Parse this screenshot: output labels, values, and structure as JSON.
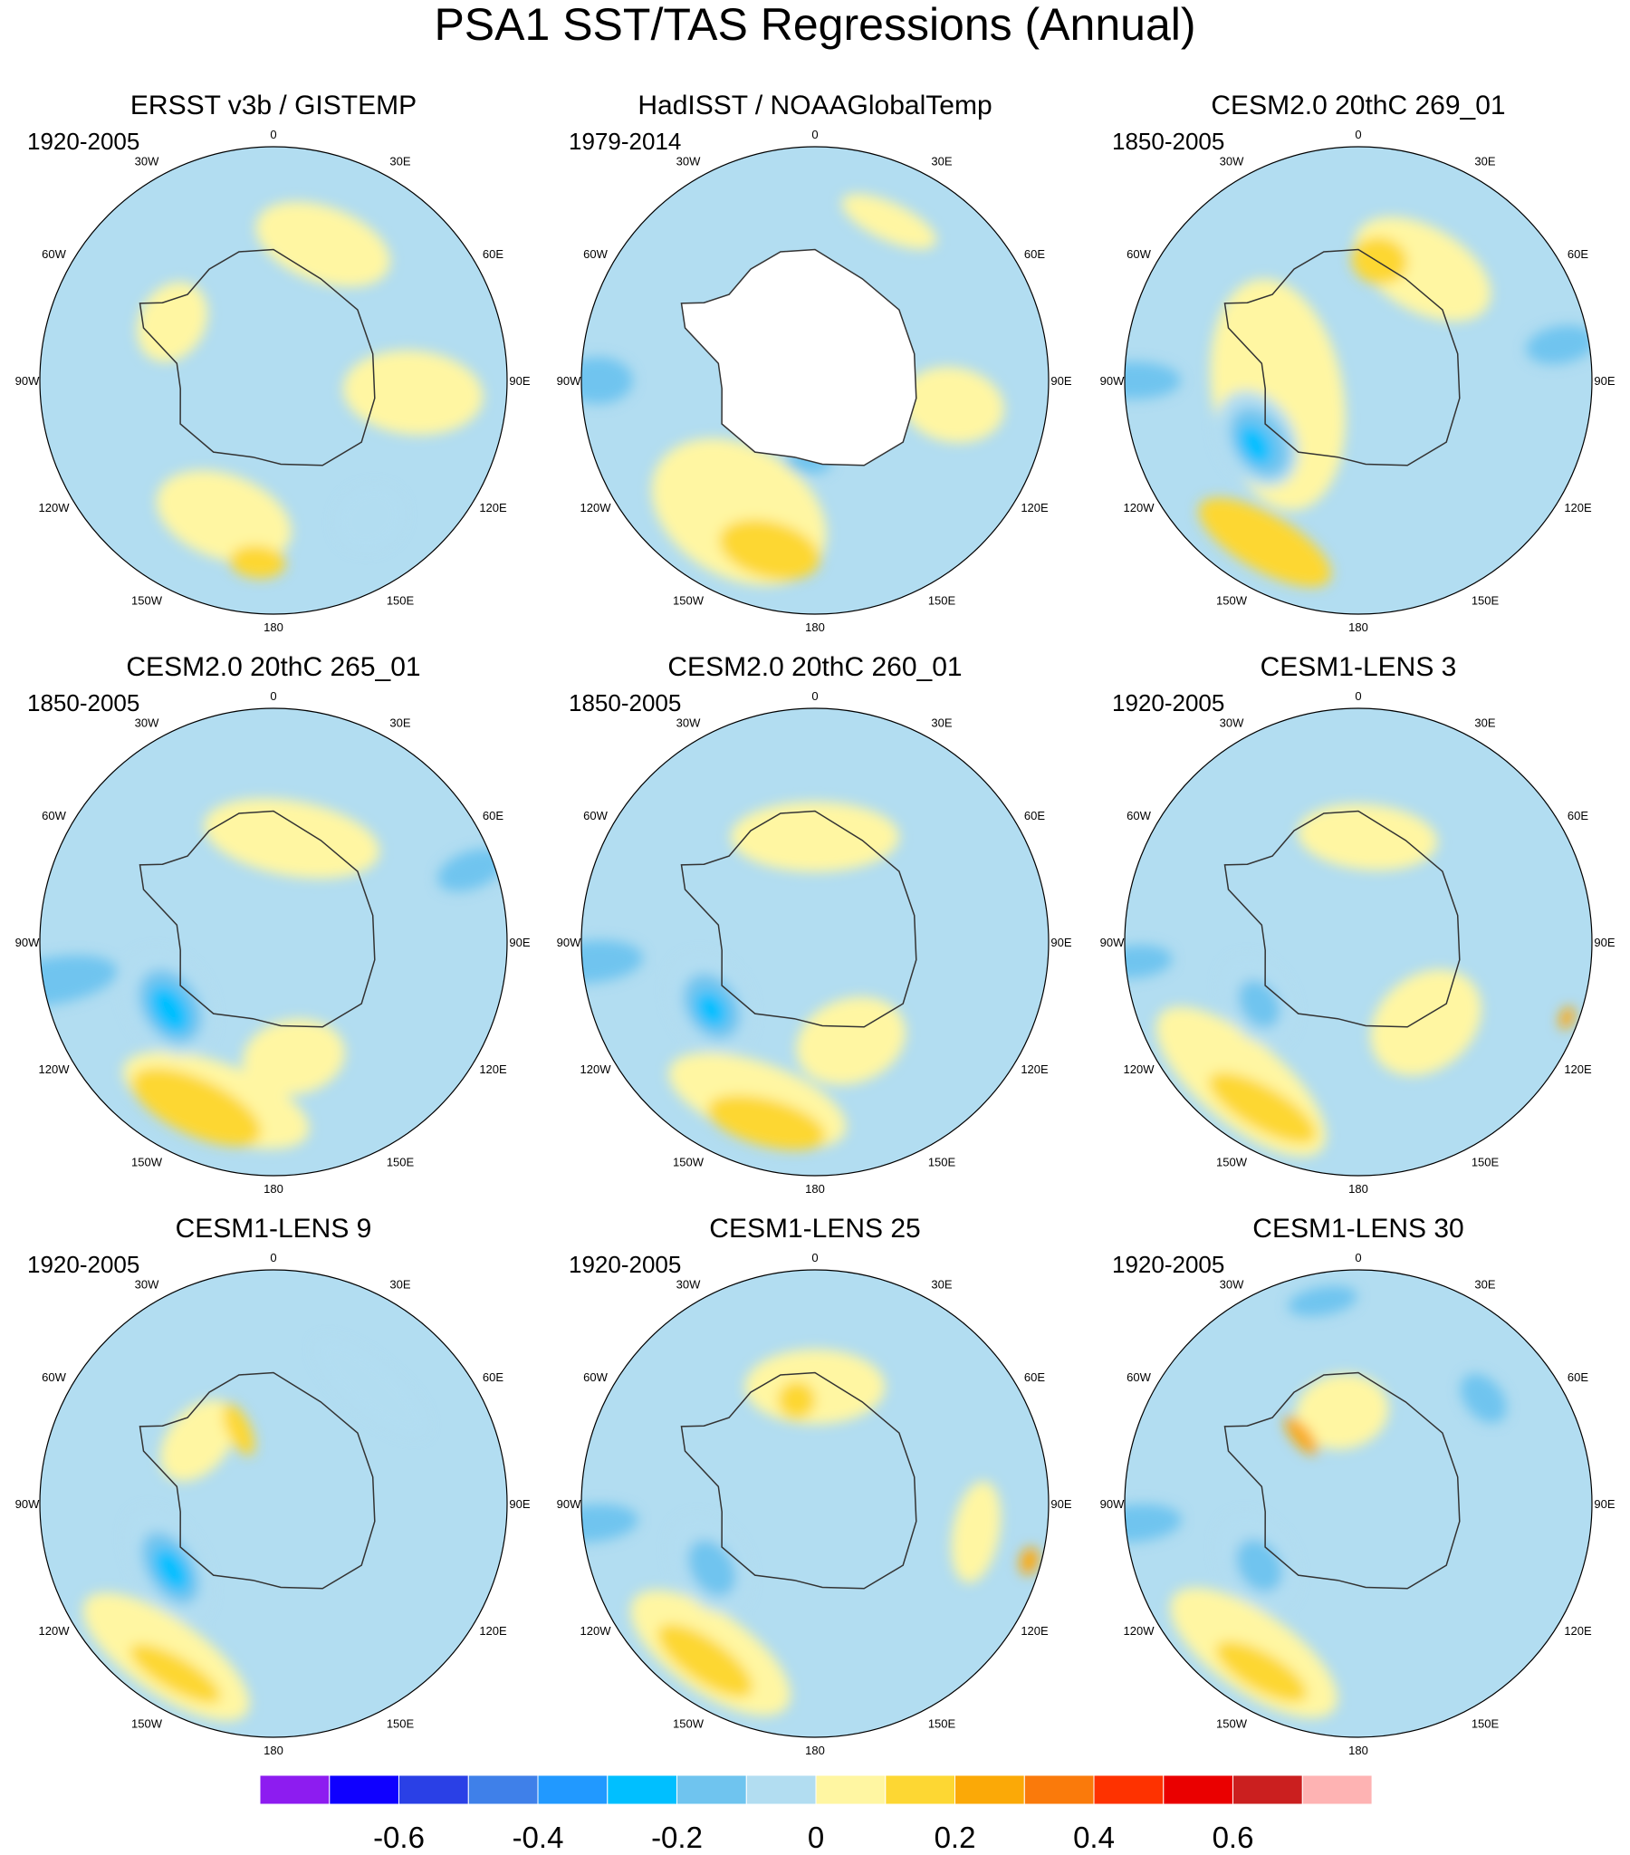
{
  "chart_data": {
    "type": "heatmap",
    "projection": "south-polar-stereographic",
    "title": "PSA1 SST/TAS Regressions (Annual)",
    "longitude_labels": [
      "0",
      "30E",
      "60E",
      "90E",
      "120E",
      "150E",
      "180",
      "150W",
      "120W",
      "90W",
      "60W",
      "30W"
    ],
    "panels": [
      {
        "title": "ERSST v3b / GISTEMP",
        "period": "1920-2005",
        "features": [
          {
            "level": 0.05,
            "lon": 20,
            "r": 0.62,
            "sx": 0.3,
            "sy": 0.16
          },
          {
            "level": 0.05,
            "lon": 95,
            "r": 0.6,
            "sx": 0.18,
            "sy": 0.3
          },
          {
            "level": 0.05,
            "lon": -160,
            "r": 0.62,
            "sx": 0.3,
            "sy": 0.18
          },
          {
            "level": 0.05,
            "lon": -60,
            "r": 0.5,
            "sx": 0.18,
            "sy": 0.14
          },
          {
            "level": 0.15,
            "lon": -175,
            "r": 0.78,
            "sx": 0.12,
            "sy": 0.07
          },
          {
            "level": -0.05,
            "lon": 145,
            "r": 0.72,
            "sx": 0.15,
            "sy": 0.13
          }
        ]
      },
      {
        "title": "HadISST / NOAAGlobalTemp",
        "period": "1979-2014",
        "mask_polar": true,
        "features": [
          {
            "level": 0.05,
            "lon": -150,
            "r": 0.65,
            "sx": 0.4,
            "sy": 0.28
          },
          {
            "level": 0.15,
            "lon": -165,
            "r": 0.75,
            "sx": 0.22,
            "sy": 0.12
          },
          {
            "level": 0.05,
            "lon": 100,
            "r": 0.6,
            "sx": 0.16,
            "sy": 0.22
          },
          {
            "level": 0.05,
            "lon": 25,
            "r": 0.75,
            "sx": 0.22,
            "sy": 0.08
          },
          {
            "level": -0.15,
            "lon": -90,
            "r": 0.93,
            "sx": 0.1,
            "sy": 0.15
          },
          {
            "level": -0.15,
            "lon": -175,
            "r": 0.35,
            "sx": 0.1,
            "sy": 0.05
          }
        ]
      },
      {
        "title": "CESM2.0 20thC 269_01",
        "period": "1850-2005",
        "features": [
          {
            "level": 0.05,
            "lon": -100,
            "r": 0.35,
            "sx": 0.5,
            "sy": 0.28
          },
          {
            "level": 0.05,
            "lon": 30,
            "r": 0.55,
            "sx": 0.32,
            "sy": 0.18
          },
          {
            "level": 0.15,
            "lon": 10,
            "r": 0.52,
            "sx": 0.12,
            "sy": 0.1
          },
          {
            "level": 0.15,
            "lon": -150,
            "r": 0.8,
            "sx": 0.32,
            "sy": 0.12
          },
          {
            "level": -0.05,
            "lon": -120,
            "r": 0.5,
            "sx": 0.22,
            "sy": 0.16
          },
          {
            "level": -0.15,
            "lon": -122,
            "r": 0.5,
            "sx": 0.16,
            "sy": 0.11
          },
          {
            "level": -0.25,
            "lon": -122,
            "r": 0.52,
            "sx": 0.09,
            "sy": 0.06
          },
          {
            "level": -0.15,
            "lon": -90,
            "r": 0.96,
            "sx": 0.08,
            "sy": 0.2
          },
          {
            "level": -0.15,
            "lon": 80,
            "r": 0.88,
            "sx": 0.08,
            "sy": 0.15
          }
        ]
      },
      {
        "title": "CESM2.0 20thC 265_01",
        "period": "1850-2005",
        "features": [
          {
            "level": 0.05,
            "lon": 10,
            "r": 0.45,
            "sx": 0.38,
            "sy": 0.16
          },
          {
            "level": 0.05,
            "lon": -160,
            "r": 0.72,
            "sx": 0.42,
            "sy": 0.16
          },
          {
            "level": 0.05,
            "lon": 170,
            "r": 0.5,
            "sx": 0.22,
            "sy": 0.16
          },
          {
            "level": 0.15,
            "lon": -155,
            "r": 0.78,
            "sx": 0.3,
            "sy": 0.12
          },
          {
            "level": -0.05,
            "lon": -120,
            "r": 0.52,
            "sx": 0.24,
            "sy": 0.17
          },
          {
            "level": -0.15,
            "lon": -122,
            "r": 0.52,
            "sx": 0.17,
            "sy": 0.12
          },
          {
            "level": -0.25,
            "lon": -123,
            "r": 0.53,
            "sx": 0.11,
            "sy": 0.07
          },
          {
            "level": -0.15,
            "lon": -100,
            "r": 0.96,
            "sx": 0.1,
            "sy": 0.28
          },
          {
            "level": -0.15,
            "lon": 70,
            "r": 0.9,
            "sx": 0.08,
            "sy": 0.15
          }
        ]
      },
      {
        "title": "CESM2.0 20thC 260_01",
        "period": "1850-2005",
        "features": [
          {
            "level": 0.05,
            "lon": 0,
            "r": 0.45,
            "sx": 0.36,
            "sy": 0.15
          },
          {
            "level": 0.05,
            "lon": -160,
            "r": 0.72,
            "sx": 0.4,
            "sy": 0.16
          },
          {
            "level": 0.05,
            "lon": 160,
            "r": 0.45,
            "sx": 0.24,
            "sy": 0.18
          },
          {
            "level": 0.15,
            "lon": -165,
            "r": 0.8,
            "sx": 0.26,
            "sy": 0.1
          },
          {
            "level": -0.05,
            "lon": -120,
            "r": 0.52,
            "sx": 0.22,
            "sy": 0.16
          },
          {
            "level": -0.15,
            "lon": -122,
            "r": 0.52,
            "sx": 0.15,
            "sy": 0.11
          },
          {
            "level": -0.25,
            "lon": -123,
            "r": 0.53,
            "sx": 0.08,
            "sy": 0.06
          },
          {
            "level": -0.15,
            "lon": -95,
            "r": 0.96,
            "sx": 0.09,
            "sy": 0.22
          }
        ]
      },
      {
        "title": "CESM1-LENS 3",
        "period": "1920-2005",
        "features": [
          {
            "level": 0.05,
            "lon": -140,
            "r": 0.78,
            "sx": 0.45,
            "sy": 0.18
          },
          {
            "level": 0.05,
            "lon": 5,
            "r": 0.45,
            "sx": 0.3,
            "sy": 0.14
          },
          {
            "level": 0.05,
            "lon": 140,
            "r": 0.45,
            "sx": 0.26,
            "sy": 0.2
          },
          {
            "level": 0.15,
            "lon": -150,
            "r": 0.82,
            "sx": 0.26,
            "sy": 0.09
          },
          {
            "level": 0.25,
            "lon": 110,
            "r": 0.95,
            "sx": 0.05,
            "sy": 0.03
          },
          {
            "level": -0.05,
            "lon": -120,
            "r": 0.5,
            "sx": 0.2,
            "sy": 0.14
          },
          {
            "level": -0.15,
            "lon": -122,
            "r": 0.5,
            "sx": 0.11,
            "sy": 0.08
          },
          {
            "level": -0.15,
            "lon": -95,
            "r": 0.96,
            "sx": 0.07,
            "sy": 0.16
          }
        ]
      },
      {
        "title": "CESM1-LENS 9",
        "period": "1920-2005",
        "features": [
          {
            "level": 0.05,
            "lon": -145,
            "r": 0.8,
            "sx": 0.42,
            "sy": 0.16
          },
          {
            "level": 0.05,
            "lon": -50,
            "r": 0.42,
            "sx": 0.2,
            "sy": 0.13
          },
          {
            "level": 0.15,
            "lon": -150,
            "r": 0.84,
            "sx": 0.22,
            "sy": 0.07
          },
          {
            "level": 0.15,
            "lon": -25,
            "r": 0.35,
            "sx": 0.05,
            "sy": 0.12
          },
          {
            "level": -0.05,
            "lon": -120,
            "r": 0.52,
            "sx": 0.26,
            "sy": 0.14
          },
          {
            "level": -0.15,
            "lon": -122,
            "r": 0.52,
            "sx": 0.17,
            "sy": 0.1
          },
          {
            "level": -0.25,
            "lon": -123,
            "r": 0.52,
            "sx": 0.1,
            "sy": 0.06
          },
          {
            "level": -0.05,
            "lon": 40,
            "r": 0.65,
            "sx": 0.3,
            "sy": 0.1
          }
        ]
      },
      {
        "title": "CESM1-LENS 25",
        "period": "1920-2005",
        "features": [
          {
            "level": 0.05,
            "lon": 0,
            "r": 0.5,
            "sx": 0.3,
            "sy": 0.16
          },
          {
            "level": 0.05,
            "lon": -145,
            "r": 0.78,
            "sx": 0.4,
            "sy": 0.17
          },
          {
            "level": 0.05,
            "lon": 100,
            "r": 0.7,
            "sx": 0.22,
            "sy": 0.1
          },
          {
            "level": 0.15,
            "lon": -145,
            "r": 0.82,
            "sx": 0.24,
            "sy": 0.09
          },
          {
            "level": 0.15,
            "lon": -10,
            "r": 0.45,
            "sx": 0.08,
            "sy": 0.08
          },
          {
            "level": 0.25,
            "lon": 105,
            "r": 0.95,
            "sx": 0.06,
            "sy": 0.04
          },
          {
            "level": -0.05,
            "lon": -120,
            "r": 0.52,
            "sx": 0.22,
            "sy": 0.15
          },
          {
            "level": -0.15,
            "lon": -122,
            "r": 0.52,
            "sx": 0.13,
            "sy": 0.09
          },
          {
            "level": -0.15,
            "lon": -95,
            "r": 0.96,
            "sx": 0.08,
            "sy": 0.2
          }
        ]
      },
      {
        "title": "CESM1-LENS 30",
        "period": "1920-2005",
        "features": [
          {
            "level": 0.05,
            "lon": -145,
            "r": 0.78,
            "sx": 0.42,
            "sy": 0.17
          },
          {
            "level": 0.05,
            "lon": -10,
            "r": 0.4,
            "sx": 0.2,
            "sy": 0.16
          },
          {
            "level": 0.15,
            "lon": -150,
            "r": 0.83,
            "sx": 0.22,
            "sy": 0.08
          },
          {
            "level": 0.25,
            "lon": -40,
            "r": 0.38,
            "sx": 0.04,
            "sy": 0.1
          },
          {
            "level": -0.05,
            "lon": -120,
            "r": 0.5,
            "sx": 0.22,
            "sy": 0.15
          },
          {
            "level": -0.15,
            "lon": -122,
            "r": 0.5,
            "sx": 0.12,
            "sy": 0.09
          },
          {
            "level": -0.15,
            "lon": -95,
            "r": 0.96,
            "sx": 0.08,
            "sy": 0.2
          },
          {
            "level": -0.15,
            "lon": 50,
            "r": 0.7,
            "sx": 0.12,
            "sy": 0.08
          },
          {
            "level": -0.15,
            "lon": -10,
            "r": 0.88,
            "sx": 0.15,
            "sy": 0.06
          }
        ]
      }
    ],
    "colorbar": {
      "colors": [
        "#8d1cf0",
        "#0f00ff",
        "#2a40e6",
        "#3f80e9",
        "#2199ff",
        "#00bfff",
        "#6fc4ef",
        "#b2ddf1",
        "#fff6a2",
        "#fdd733",
        "#fba907",
        "#fa7a0b",
        "#fe3200",
        "#ea0000",
        "#cb1f1f",
        "#feb3b3"
      ],
      "levels": [
        -0.7,
        -0.6,
        -0.5,
        -0.4,
        -0.3,
        -0.2,
        -0.1,
        0,
        0.1,
        0.2,
        0.3,
        0.4,
        0.5,
        0.6,
        0.7
      ],
      "tick_values": [
        -0.6,
        -0.4,
        -0.2,
        0,
        0.2,
        0.4,
        0.6
      ],
      "tick_labels": [
        "-0.6",
        "-0.4",
        "-0.2",
        "0",
        "0.2",
        "0.4",
        "0.6"
      ]
    },
    "background_color": "#b2ddf1",
    "land_color": "#ffffff",
    "coast_color": "#333333"
  }
}
